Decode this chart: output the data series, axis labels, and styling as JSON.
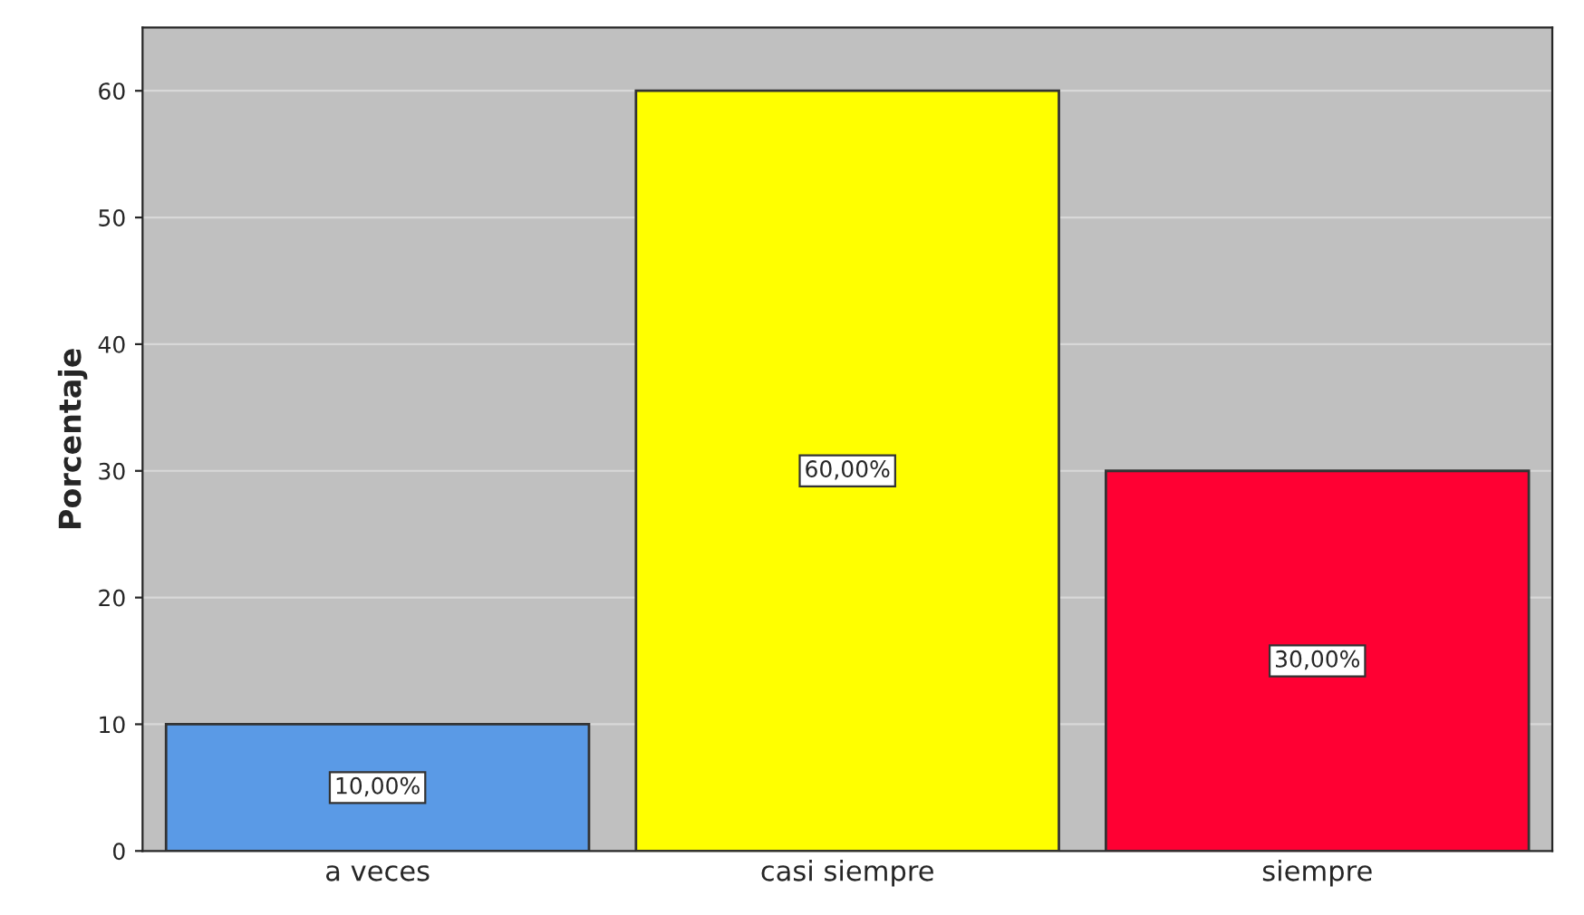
{
  "chart_data": {
    "type": "bar",
    "ylabel": "Porcentaje",
    "categories": [
      "a veces",
      "casi siempre",
      "siempre"
    ],
    "values": [
      10,
      60,
      30
    ],
    "colors": [
      "#5a9ae6",
      "#ffff00",
      "#ff0033"
    ],
    "value_labels": [
      "10,00%",
      "60,00%",
      "30,00%"
    ],
    "ylim": [
      0,
      65
    ],
    "yticks": [
      0,
      10,
      20,
      30,
      40,
      50,
      60
    ],
    "grid": "y"
  }
}
